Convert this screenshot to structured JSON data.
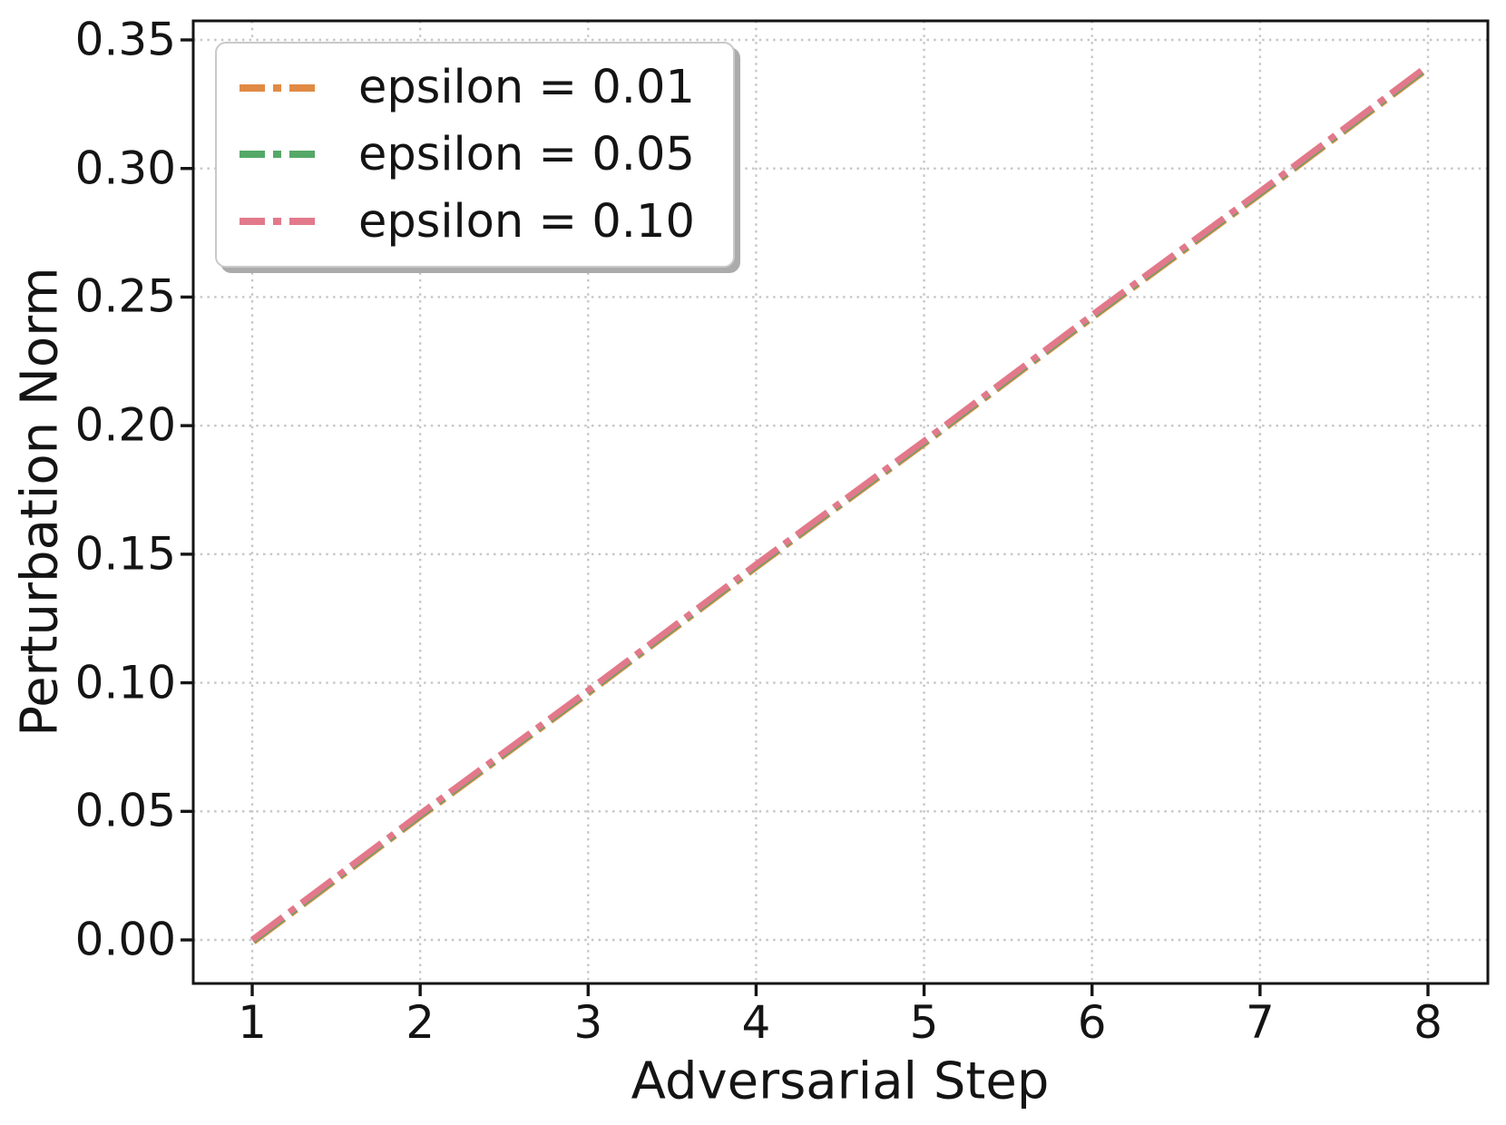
{
  "figure": {
    "background": "#ffffff",
    "text_color": "#141414",
    "grid_color": "#c6c6c6"
  },
  "chart_data": {
    "type": "line",
    "title": "",
    "xlabel": "Adversarial Step",
    "ylabel": "Perturbation Norm",
    "x": [
      1,
      2,
      3,
      4,
      5,
      6,
      7,
      8
    ],
    "x_ticks": [
      "1",
      "2",
      "3",
      "4",
      "5",
      "6",
      "7",
      "8"
    ],
    "y_tick_values": [
      0.0,
      0.05,
      0.1,
      0.15,
      0.2,
      0.25,
      0.3,
      0.35
    ],
    "y_ticks": [
      "0.00",
      "0.05",
      "0.10",
      "0.15",
      "0.20",
      "0.25",
      "0.30",
      "0.35"
    ],
    "xlim": [
      0.65,
      8.36
    ],
    "ylim": [
      -0.017,
      0.357
    ],
    "grid": true,
    "grid_style": "dotted",
    "line_style": "dash-dot",
    "legend_position": "upper-left",
    "series": [
      {
        "name": "epsilon = 0.01",
        "color": "#E08A44",
        "values": [
          0.0,
          0.049,
          0.097,
          0.146,
          0.194,
          0.243,
          0.291,
          0.34
        ]
      },
      {
        "name": "epsilon = 0.05",
        "color": "#55A868",
        "values": [
          0.0,
          0.049,
          0.097,
          0.146,
          0.194,
          0.243,
          0.291,
          0.34
        ]
      },
      {
        "name": "epsilon = 0.10",
        "color": "#E2798B",
        "values": [
          0.0,
          0.049,
          0.097,
          0.146,
          0.194,
          0.243,
          0.291,
          0.34
        ]
      }
    ]
  }
}
